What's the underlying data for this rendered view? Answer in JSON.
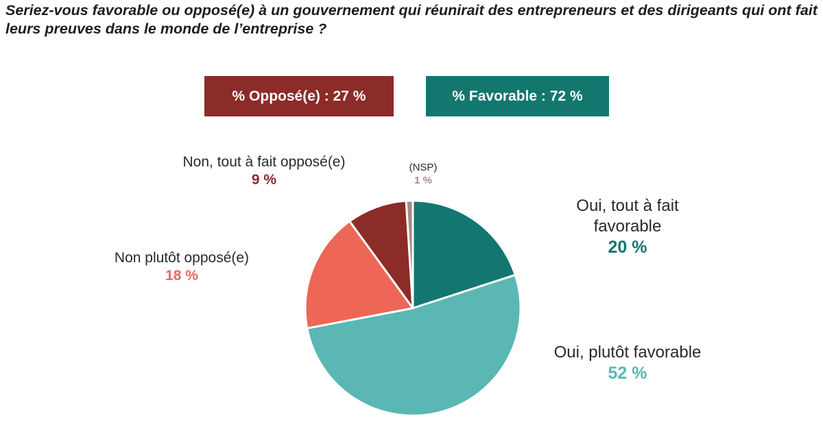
{
  "question": "Seriez-vous favorable ou opposé(e) à un gouvernement qui réunirait des entrepreneurs et des dirigeants qui ont fait leurs preuves dans le monde de l’entreprise ?",
  "summary": {
    "opposed": {
      "text": "% Opposé(e) : 27 %",
      "color": "#8b2c29"
    },
    "favorable": {
      "text": "% Favorable : 72 %",
      "color": "#137770"
    }
  },
  "chart_data": {
    "type": "pie",
    "title": "Seriez-vous favorable ou opposé(e) à un gouvernement qui réunirait des entrepreneurs et des dirigeants qui ont fait leurs preuves dans le monde de l’entreprise ?",
    "start": "12 o'clock",
    "direction": "clockwise",
    "slices": [
      {
        "label": "Oui, tout à fait favorable",
        "value": 20,
        "display": "20 %",
        "color": "#137770"
      },
      {
        "label": "Oui, plutôt favorable",
        "value": 52,
        "display": "52 %",
        "color": "#5bb7b3"
      },
      {
        "label": "Non plutôt opposé(e)",
        "value": 18,
        "display": "18 %",
        "color": "#ee6656"
      },
      {
        "label": "Non, tout à fait opposé(e)",
        "value": 9,
        "display": "9 %",
        "color": "#8b2c29"
      },
      {
        "label": "(NSP)",
        "value": 1,
        "display": "1 %",
        "color": "#a78a85"
      }
    ]
  }
}
